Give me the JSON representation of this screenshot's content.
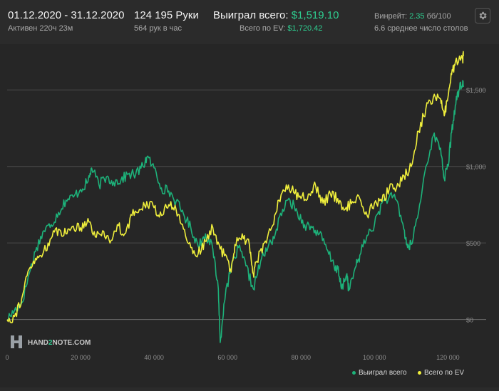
{
  "header": {
    "date_range": "01.12.2020 - 31.12.2020",
    "active_time": "Активен 220ч 23м",
    "hands": "124 195 Руки",
    "hands_per_hour": "564 рук в час",
    "won_label": "Выиграл всего:",
    "won_value": "$1,519.10",
    "ev_label": "Всего по EV:",
    "ev_value": "$1,720.42",
    "winrate_label": "Винрейт:",
    "winrate_value": "2.35",
    "winrate_unit": "бб/100",
    "tables_avg": "6.6 среднее число столов"
  },
  "colors": {
    "won": "#1db27a",
    "ev": "#f0ef3c",
    "accent_green": "#2ecc8f",
    "grid": "#4a4a4a",
    "background": "#262626"
  },
  "logo": {
    "text_pre": "HAND",
    "text_mid": "2",
    "text_post": "NOTE.COM"
  },
  "settings_icon": "gear-icon",
  "chart_data": {
    "type": "line",
    "x_label": "",
    "y_label": "",
    "xlim": [
      0,
      124195
    ],
    "ylim": [
      -155,
      1780
    ],
    "y_ticks": [
      0,
      500,
      1000,
      1500
    ],
    "y_tick_labels": [
      "$0",
      "$500",
      "$1,000",
      "$1,500"
    ],
    "x_ticks": [
      0,
      20000,
      40000,
      60000,
      80000,
      100000,
      120000
    ],
    "x_tick_labels": [
      "0",
      "20 000",
      "40 000",
      "60 000",
      "80 000",
      "100 000",
      "120 000"
    ],
    "grid": "horizontal",
    "legend_position": "bottom-right",
    "series": [
      {
        "name": "Выиграл всего",
        "key": "won",
        "points": [
          [
            0,
            0
          ],
          [
            2000,
            60
          ],
          [
            4000,
            110
          ],
          [
            6000,
            300
          ],
          [
            8000,
            470
          ],
          [
            10000,
            580
          ],
          [
            12000,
            620
          ],
          [
            14000,
            700
          ],
          [
            16000,
            780
          ],
          [
            18000,
            800
          ],
          [
            20000,
            850
          ],
          [
            22000,
            900
          ],
          [
            23000,
            990
          ],
          [
            25000,
            880
          ],
          [
            27000,
            930
          ],
          [
            29000,
            900
          ],
          [
            31000,
            910
          ],
          [
            33000,
            950
          ],
          [
            35000,
            950
          ],
          [
            37000,
            1000
          ],
          [
            38000,
            1060
          ],
          [
            40000,
            990
          ],
          [
            42000,
            860
          ],
          [
            44000,
            840
          ],
          [
            46000,
            770
          ],
          [
            48000,
            690
          ],
          [
            50000,
            600
          ],
          [
            52000,
            480
          ],
          [
            54000,
            560
          ],
          [
            56000,
            460
          ],
          [
            57500,
            200
          ],
          [
            58000,
            -150
          ],
          [
            59000,
            100
          ],
          [
            61000,
            340
          ],
          [
            63000,
            470
          ],
          [
            65000,
            350
          ],
          [
            67000,
            200
          ],
          [
            69000,
            380
          ],
          [
            71000,
            470
          ],
          [
            73000,
            560
          ],
          [
            75000,
            720
          ],
          [
            77000,
            780
          ],
          [
            79000,
            700
          ],
          [
            81000,
            620
          ],
          [
            83000,
            600
          ],
          [
            85000,
            560
          ],
          [
            87000,
            460
          ],
          [
            89000,
            350
          ],
          [
            90000,
            330
          ],
          [
            91000,
            200
          ],
          [
            92500,
            300
          ],
          [
            93000,
            190
          ],
          [
            95000,
            350
          ],
          [
            96000,
            420
          ],
          [
            98000,
            550
          ],
          [
            100000,
            620
          ],
          [
            102000,
            760
          ],
          [
            104000,
            800
          ],
          [
            106000,
            780
          ],
          [
            108000,
            590
          ],
          [
            109000,
            470
          ],
          [
            110000,
            490
          ],
          [
            112000,
            700
          ],
          [
            114000,
            1000
          ],
          [
            116000,
            1200
          ],
          [
            118000,
            1120
          ],
          [
            119000,
            920
          ],
          [
            120000,
            1000
          ],
          [
            121000,
            1220
          ],
          [
            122000,
            1400
          ],
          [
            123000,
            1500
          ],
          [
            124000,
            1540
          ],
          [
            124195,
            1519
          ]
        ]
      },
      {
        "name": "Всего по EV",
        "key": "ev",
        "points": [
          [
            0,
            0
          ],
          [
            2000,
            20
          ],
          [
            4000,
            140
          ],
          [
            6000,
            330
          ],
          [
            8000,
            390
          ],
          [
            10000,
            450
          ],
          [
            12000,
            530
          ],
          [
            14000,
            590
          ],
          [
            16000,
            560
          ],
          [
            18000,
            610
          ],
          [
            20000,
            600
          ],
          [
            22000,
            660
          ],
          [
            24000,
            540
          ],
          [
            26000,
            580
          ],
          [
            28000,
            500
          ],
          [
            30000,
            620
          ],
          [
            32000,
            560
          ],
          [
            34000,
            680
          ],
          [
            36000,
            720
          ],
          [
            38000,
            770
          ],
          [
            40000,
            730
          ],
          [
            42000,
            680
          ],
          [
            44000,
            750
          ],
          [
            46000,
            720
          ],
          [
            48000,
            590
          ],
          [
            50000,
            470
          ],
          [
            52000,
            430
          ],
          [
            54000,
            510
          ],
          [
            56000,
            600
          ],
          [
            58000,
            460
          ],
          [
            60000,
            390
          ],
          [
            61000,
            310
          ],
          [
            62000,
            490
          ],
          [
            64000,
            560
          ],
          [
            66000,
            480
          ],
          [
            67000,
            300
          ],
          [
            68000,
            380
          ],
          [
            70000,
            500
          ],
          [
            72000,
            600
          ],
          [
            74000,
            780
          ],
          [
            76000,
            880
          ],
          [
            78000,
            830
          ],
          [
            80000,
            790
          ],
          [
            82000,
            820
          ],
          [
            84000,
            870
          ],
          [
            86000,
            760
          ],
          [
            88000,
            820
          ],
          [
            90000,
            790
          ],
          [
            92000,
            720
          ],
          [
            94000,
            770
          ],
          [
            96000,
            790
          ],
          [
            98000,
            680
          ],
          [
            100000,
            760
          ],
          [
            102000,
            770
          ],
          [
            104000,
            850
          ],
          [
            106000,
            860
          ],
          [
            108000,
            940
          ],
          [
            110000,
            1000
          ],
          [
            112000,
            1230
          ],
          [
            114000,
            1380
          ],
          [
            116000,
            1450
          ],
          [
            118000,
            1440
          ],
          [
            119000,
            1330
          ],
          [
            120000,
            1450
          ],
          [
            121000,
            1600
          ],
          [
            122000,
            1680
          ],
          [
            124000,
            1700
          ],
          [
            124195,
            1720
          ]
        ]
      }
    ]
  }
}
